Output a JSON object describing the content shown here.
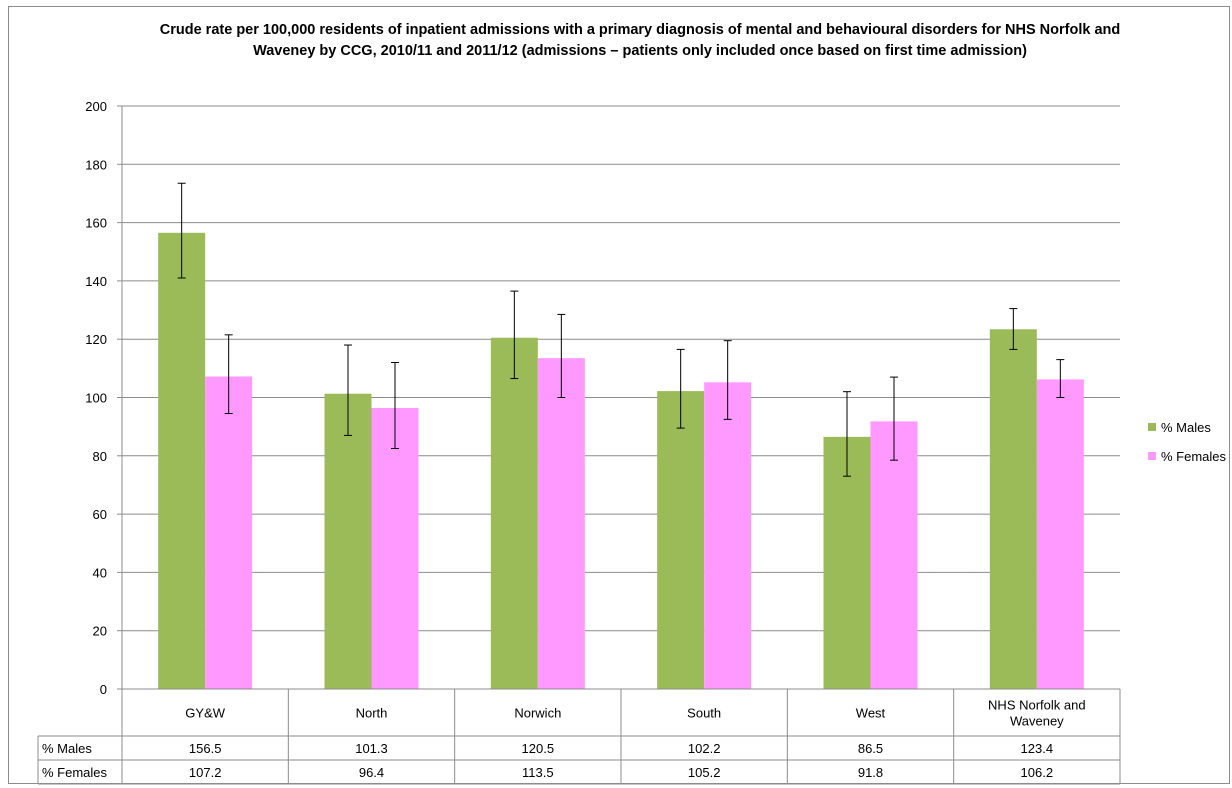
{
  "colors": {
    "males": "#9bbb59",
    "females": "#ff99ff",
    "gridline": "#8c8c8c",
    "axis": "#8c8c8c"
  },
  "chart_data": {
    "type": "bar",
    "title": "Crude rate per 100,000 residents of inpatient admissions with a primary diagnosis of mental and behavioural disorders for NHS Norfolk and Waveney by CCG, 2010/11 and 2011/12 (admissions – patients only included once based on first time admission)",
    "categories": [
      "GY&W",
      "North",
      "Norwich",
      "South",
      "West",
      "NHS Norfolk and Waveney"
    ],
    "series": [
      {
        "name": "% Males",
        "values": [
          156.5,
          101.3,
          120.5,
          102.2,
          86.5,
          123.4
        ],
        "display_values": [
          "156.5",
          "101.3",
          "120.5",
          "102.2",
          "86.5",
          "123.4"
        ],
        "error_low": [
          141,
          87,
          106.5,
          89.5,
          73,
          116.5
        ],
        "error_high": [
          173.5,
          118,
          136.5,
          116.5,
          102,
          130.5
        ],
        "color": "#9bbb59"
      },
      {
        "name": "% Females",
        "values": [
          107.2,
          96.4,
          113.5,
          105.2,
          91.8,
          106.2
        ],
        "display_values": [
          "107.2",
          "96.4",
          "113.5",
          "105.2",
          "91.8",
          "106.2"
        ],
        "error_low": [
          94.5,
          82.5,
          100,
          92.5,
          78.5,
          100
        ],
        "error_high": [
          121.5,
          112,
          128.5,
          119.5,
          107,
          113
        ],
        "color": "#ff99ff"
      }
    ],
    "y_ticks": [
      "0",
      "20",
      "40",
      "60",
      "80",
      "100",
      "120",
      "140",
      "160",
      "180",
      "200"
    ],
    "ylim": [
      0,
      200
    ],
    "grid": true,
    "legend": "right",
    "data_table": true
  }
}
